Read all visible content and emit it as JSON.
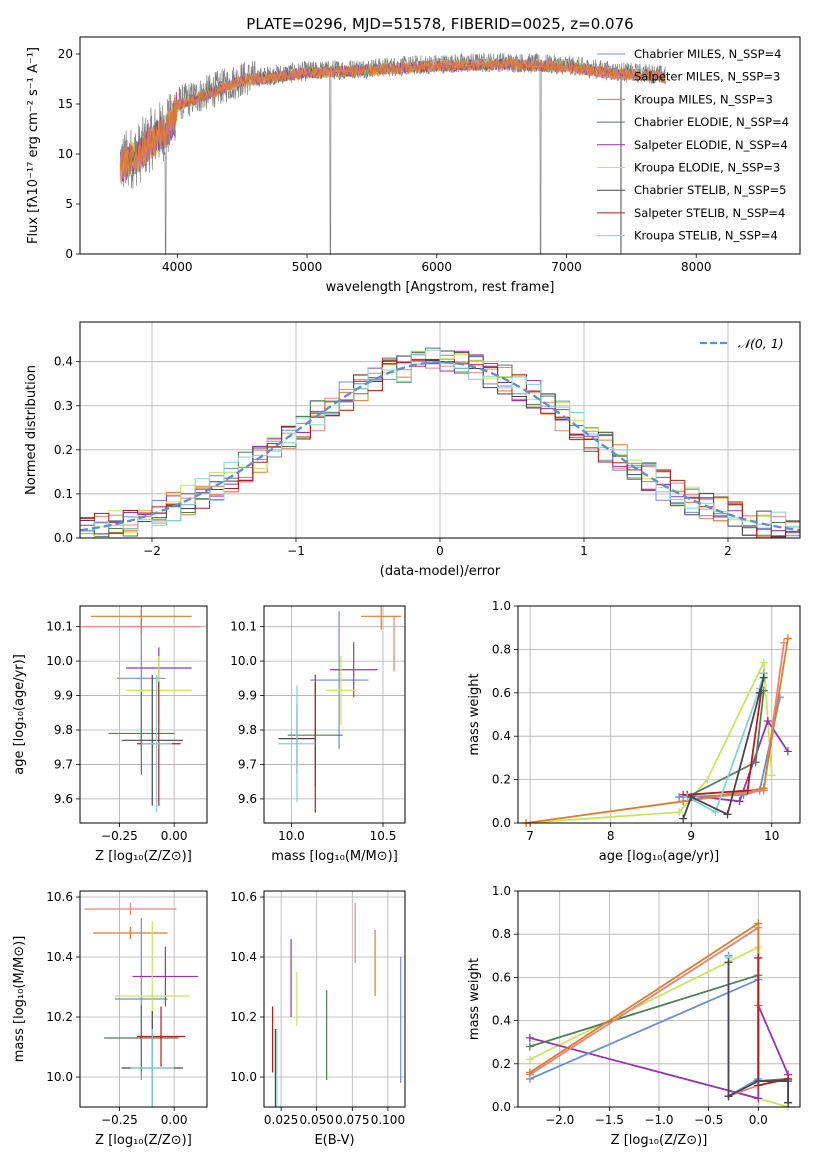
{
  "figure_title": "PLATE=0296, MJD=51578, FIBERID=0025, z=0.076",
  "colors": {
    "chabrier_miles": "#6b8fd6",
    "salpeter_miles": "#e8837a",
    "kroupa_miles": "#e07b2a",
    "chabrier_elodie": "#4f7f56",
    "salpeter_elodie": "#9b32b0",
    "kroupa_elodie": "#c8e65a",
    "chabrier_stelib": "#4a4452",
    "salpeter_stelib": "#b71c1c",
    "kroupa_stelib": "#7fd3d6",
    "data": "#808080",
    "normal": "#5b8fd6"
  },
  "chart_data": [
    {
      "id": "spectrum",
      "type": "line",
      "title": "PLATE=0296, MJD=51578, FIBERID=0025, z=0.076",
      "xlabel": "wavelength [Angstrom, rest frame]",
      "ylabel": "Flux [fλ10⁻¹⁷ erg cm⁻² s⁻¹ A⁻¹]",
      "xlim": [
        3250,
        8800
      ],
      "ylim": [
        0,
        21.7
      ],
      "xticks": [
        "4000",
        "5000",
        "6000",
        "7000",
        "8000"
      ],
      "yticks": [
        "0",
        "5",
        "10",
        "15",
        "20"
      ],
      "legend_position": "right",
      "legend": [
        {
          "label": "Chabrier MILES, N_SSP=4",
          "color_key": "chabrier_miles"
        },
        {
          "label": "Salpeter MILES, N_SSP=3",
          "color_key": "salpeter_miles"
        },
        {
          "label": "Kroupa MILES, N_SSP=3",
          "color_key": "kroupa_miles"
        },
        {
          "label": "Chabrier ELODIE, N_SSP=4",
          "color_key": "chabrier_elodie"
        },
        {
          "label": "Salpeter ELODIE, N_SSP=4",
          "color_key": "salpeter_elodie"
        },
        {
          "label": "Kroupa ELODIE, N_SSP=3",
          "color_key": "kroupa_elodie"
        },
        {
          "label": "Chabrier STELIB, N_SSP=5",
          "color_key": "chabrier_stelib"
        },
        {
          "label": "Salpeter STELIB, N_SSP=4",
          "color_key": "salpeter_stelib"
        },
        {
          "label": "Kroupa STELIB, N_SSP=4",
          "color_key": "kroupa_stelib"
        }
      ],
      "continuum": [
        [
          3560,
          9
        ],
        [
          3700,
          10
        ],
        [
          3800,
          11.5
        ],
        [
          3950,
          13
        ],
        [
          4000,
          15
        ],
        [
          4200,
          16
        ],
        [
          4500,
          17.5
        ],
        [
          5000,
          18.3
        ],
        [
          5500,
          18.6
        ],
        [
          6000,
          19
        ],
        [
          6500,
          19.2
        ],
        [
          7000,
          18.9
        ],
        [
          7400,
          18.2
        ],
        [
          7700,
          18
        ],
        [
          7760,
          17.8
        ]
      ],
      "drops": [
        [
          3910,
          0
        ],
        [
          5180,
          0
        ],
        [
          6800,
          0
        ],
        [
          7420,
          0
        ]
      ]
    },
    {
      "id": "residuals",
      "type": "bar",
      "xlabel": "(data-model)/error",
      "ylabel": "Normed distribution",
      "xlim": [
        -2.5,
        2.5
      ],
      "ylim": [
        0,
        0.49
      ],
      "xticks": [
        "−2",
        "−1",
        "0",
        "1",
        "2"
      ],
      "yticks": [
        "0.0",
        "0.1",
        "0.2",
        "0.3",
        "0.4"
      ],
      "legend": [
        {
          "label": "𝒩(0, 1)",
          "color_key": "normal"
        }
      ],
      "legend_position": "top-right",
      "bin_width": 0.1
    },
    {
      "id": "age_vs_Z",
      "type": "scatter",
      "xlabel": "Z [log₁₀(Z/Z⊙)]",
      "ylabel": "age  [log₁₀(age/yr)]",
      "xlim": [
        -0.43,
        0.15
      ],
      "ylim": [
        9.53,
        10.16
      ],
      "xticks": [
        {
          "v": -0.25,
          "t": "−0.25"
        },
        {
          "v": 0.0,
          "t": "0.00"
        }
      ],
      "yticks": [
        "9.6",
        "9.7",
        "9.8",
        "9.9",
        "10.0",
        "10.1"
      ],
      "points": [
        {
          "x": -0.15,
          "y": 9.95,
          "xerr": 0.11,
          "yerr": 0.2,
          "color_key": "chabrier_miles"
        },
        {
          "x": -0.15,
          "y": 10.1,
          "xerr": 0.27,
          "yerr": 0.03,
          "color_key": "salpeter_miles"
        },
        {
          "x": -0.15,
          "y": 10.13,
          "xerr": 0.23,
          "yerr": 0.05,
          "color_key": "kroupa_miles"
        },
        {
          "x": -0.15,
          "y": 9.79,
          "xerr": 0.15,
          "yerr": 0.12,
          "color_key": "chabrier_elodie"
        },
        {
          "x": -0.07,
          "y": 9.98,
          "xerr": 0.15,
          "yerr": 0.06,
          "color_key": "salpeter_elodie"
        },
        {
          "x": -0.07,
          "y": 9.915,
          "xerr": 0.15,
          "yerr": 0.1,
          "color_key": "kroupa_elodie"
        },
        {
          "x": -0.1,
          "y": 9.77,
          "xerr": 0.14,
          "yerr": 0.19,
          "color_key": "chabrier_stelib"
        },
        {
          "x": -0.07,
          "y": 9.76,
          "xerr": 0.1,
          "yerr": 0.18,
          "color_key": "salpeter_stelib"
        },
        {
          "x": -0.08,
          "y": 9.76,
          "xerr": 0.07,
          "yerr": 0.2,
          "color_key": "kroupa_stelib"
        }
      ]
    },
    {
      "id": "age_vs_mass",
      "type": "scatter",
      "xlabel": "mass [log₁₀(M/M⊙)]",
      "ylabel": "",
      "xlim": [
        9.85,
        10.62
      ],
      "ylim": [
        9.53,
        10.16
      ],
      "xticks": [
        {
          "v": 10.0,
          "t": "10.0"
        },
        {
          "v": 10.5,
          "t": "10.5"
        }
      ],
      "yticks": [
        "9.6",
        "9.7",
        "9.8",
        "9.9",
        "10.0",
        "10.1"
      ],
      "points": [
        {
          "x": 10.26,
          "y": 9.945,
          "xerr": 0.16,
          "yerr": 0.2,
          "color_key": "chabrier_miles"
        },
        {
          "x": 10.56,
          "y": 10.05,
          "xerr": 0.0,
          "yerr": 0.08,
          "color_key": "salpeter_miles"
        },
        {
          "x": 10.49,
          "y": 10.13,
          "xerr": 0.11,
          "yerr": 0.04,
          "color_key": "kroupa_miles"
        },
        {
          "x": 10.13,
          "y": 9.785,
          "xerr": 0.15,
          "yerr": 0.15,
          "color_key": "chabrier_elodie"
        },
        {
          "x": 10.34,
          "y": 9.975,
          "xerr": 0.13,
          "yerr": 0.08,
          "color_key": "salpeter_elodie"
        },
        {
          "x": 10.27,
          "y": 9.915,
          "xerr": 0.08,
          "yerr": 0.1,
          "color_key": "kroupa_elodie"
        },
        {
          "x": 10.03,
          "y": 9.775,
          "xerr": 0.1,
          "yerr": 0.1,
          "color_key": "chabrier_stelib"
        },
        {
          "x": 10.13,
          "y": 9.76,
          "xerr": 0.0,
          "yerr": 0.2,
          "color_key": "salpeter_stelib"
        },
        {
          "x": 10.03,
          "y": 9.76,
          "xerr": 0.1,
          "yerr": 0.17,
          "color_key": "kroupa_stelib"
        }
      ]
    },
    {
      "id": "weight_vs_age",
      "type": "line",
      "xlabel": "age  [log₁₀(age/yr)]",
      "ylabel": "mass weight",
      "xlim": [
        6.85,
        10.35
      ],
      "ylim": [
        0,
        1.0
      ],
      "xticks": [
        {
          "v": 7,
          "t": "7"
        },
        {
          "v": 8,
          "t": "8"
        },
        {
          "v": 9,
          "t": "9"
        },
        {
          "v": 10,
          "t": "10"
        }
      ],
      "yticks": [
        "0.0",
        "0.2",
        "0.4",
        "0.6",
        "0.8",
        "1.0"
      ],
      "series": [
        {
          "color_key": "kroupa_elodie",
          "x": [
            6.95,
            8.85,
            9.2,
            9.9,
            10.0
          ],
          "y": [
            0.0,
            0.05,
            0.2,
            0.74,
            0.22
          ]
        },
        {
          "color_key": "salpeter_elodie",
          "x": [
            8.9,
            9.6,
            9.95,
            10.2
          ],
          "y": [
            0.13,
            0.1,
            0.47,
            0.33
          ]
        },
        {
          "color_key": "chabrier_miles",
          "x": [
            8.85,
            9.65,
            9.85,
            10.1
          ],
          "y": [
            0.12,
            0.13,
            0.15,
            0.58
          ]
        },
        {
          "color_key": "chabrier_elodie",
          "x": [
            8.95,
            9.8,
            9.9
          ],
          "y": [
            0.12,
            0.28,
            0.61
          ]
        },
        {
          "color_key": "salpeter_miles",
          "x": [
            8.9,
            9.9,
            10.15
          ],
          "y": [
            0.1,
            0.15,
            0.83
          ]
        },
        {
          "color_key": "kroupa_miles",
          "x": [
            6.95,
            8.9,
            9.9,
            10.2
          ],
          "y": [
            0.0,
            0.1,
            0.16,
            0.85
          ]
        },
        {
          "color_key": "salpeter_stelib",
          "x": [
            8.95,
            9.7,
            9.9
          ],
          "y": [
            0.13,
            0.15,
            0.69
          ]
        },
        {
          "color_key": "kroupa_stelib",
          "x": [
            8.95,
            9.3,
            9.85,
            9.9
          ],
          "y": [
            0.12,
            0.05,
            0.62,
            0.69
          ]
        },
        {
          "color_key": "chabrier_stelib",
          "x": [
            8.9,
            9.0,
            9.45,
            9.85,
            9.9
          ],
          "y": [
            0.02,
            0.12,
            0.04,
            0.6,
            0.67
          ]
        }
      ]
    },
    {
      "id": "mass_vs_Z",
      "type": "scatter",
      "xlabel": "Z [log₁₀(Z/Z⊙)]",
      "ylabel": "mass [log₁₀(M/M⊙)]",
      "xlim": [
        -0.43,
        0.15
      ],
      "ylim": [
        9.9,
        10.62
      ],
      "xticks": [
        {
          "v": -0.25,
          "t": "−0.25"
        },
        {
          "v": 0.0,
          "t": "0.00"
        }
      ],
      "yticks": [
        "10.0",
        "10.2",
        "10.4",
        "10.6"
      ],
      "points": [
        {
          "x": -0.15,
          "y": 10.26,
          "xerr": 0.12,
          "yerr": 0.27,
          "color_key": "chabrier_miles"
        },
        {
          "x": -0.2,
          "y": 10.56,
          "xerr": 0.21,
          "yerr": 0.02,
          "color_key": "salpeter_miles"
        },
        {
          "x": -0.2,
          "y": 10.48,
          "xerr": 0.17,
          "yerr": 0.02,
          "color_key": "kroupa_miles"
        },
        {
          "x": -0.15,
          "y": 10.13,
          "xerr": 0.17,
          "yerr": 0.11,
          "color_key": "chabrier_elodie"
        },
        {
          "x": -0.04,
          "y": 10.335,
          "xerr": 0.15,
          "yerr": 0.1,
          "color_key": "salpeter_elodie"
        },
        {
          "x": -0.1,
          "y": 10.27,
          "xerr": 0.17,
          "yerr": 0.25,
          "color_key": "kroupa_elodie"
        },
        {
          "x": -0.1,
          "y": 10.03,
          "xerr": 0.14,
          "yerr": 0.19,
          "color_key": "chabrier_stelib"
        },
        {
          "x": -0.06,
          "y": 10.135,
          "xerr": 0.11,
          "yerr": 0.1,
          "color_key": "salpeter_stelib"
        },
        {
          "x": -0.1,
          "y": 10.03,
          "xerr": 0.1,
          "yerr": 0.13,
          "color_key": "kroupa_stelib"
        }
      ]
    },
    {
      "id": "mass_vs_ebv",
      "type": "scatter",
      "xlabel": "E(B-V)",
      "ylabel": "",
      "xlim": [
        0.013,
        0.112
      ],
      "ylim": [
        9.9,
        10.62
      ],
      "xticks": [
        {
          "v": 0.025,
          "t": "0.025"
        },
        {
          "v": 0.05,
          "t": "0.050"
        },
        {
          "v": 0.075,
          "t": "0.075"
        },
        {
          "v": 0.1,
          "t": "0.100"
        }
      ],
      "yticks": [
        "10.0",
        "10.2",
        "10.4",
        "10.6"
      ],
      "points": [
        {
          "x": 0.109,
          "y": 10.19,
          "xerr": 0,
          "yerr": 0.21,
          "color_key": "chabrier_miles"
        },
        {
          "x": 0.077,
          "y": 10.48,
          "xerr": 0,
          "yerr": 0.1,
          "color_key": "salpeter_miles"
        },
        {
          "x": 0.091,
          "y": 10.38,
          "xerr": 0,
          "yerr": 0.11,
          "color_key": "kroupa_miles"
        },
        {
          "x": 0.057,
          "y": 10.14,
          "xerr": 0,
          "yerr": 0.15,
          "color_key": "chabrier_elodie"
        },
        {
          "x": 0.032,
          "y": 10.33,
          "xerr": 0,
          "yerr": 0.13,
          "color_key": "salpeter_elodie"
        },
        {
          "x": 0.036,
          "y": 10.26,
          "xerr": 0,
          "yerr": 0.09,
          "color_key": "kroupa_elodie"
        },
        {
          "x": 0.021,
          "y": 10.03,
          "xerr": 0,
          "yerr": 0.13,
          "color_key": "chabrier_stelib"
        },
        {
          "x": 0.019,
          "y": 10.125,
          "xerr": 0,
          "yerr": 0.11,
          "color_key": "salpeter_stelib"
        },
        {
          "x": 0.022,
          "y": 10.03,
          "xerr": 0,
          "yerr": 0.13,
          "color_key": "kroupa_stelib"
        }
      ]
    },
    {
      "id": "weight_vs_Z",
      "type": "line",
      "xlabel": "Z [log₁₀(Z/Z⊙)]",
      "ylabel": "mass weight",
      "xlim": [
        -2.42,
        0.42
      ],
      "ylim": [
        0,
        1.0
      ],
      "xticks": [
        {
          "v": -2.0,
          "t": "−2.0"
        },
        {
          "v": -1.5,
          "t": "−1.5"
        },
        {
          "v": -1.0,
          "t": "−1.0"
        },
        {
          "v": -0.5,
          "t": "−0.5"
        },
        {
          "v": 0.0,
          "t": "0.0"
        }
      ],
      "yticks": [
        "0.0",
        "0.2",
        "0.4",
        "0.6",
        "0.8",
        "1.0"
      ],
      "series": [
        {
          "color_key": "kroupa_elodie",
          "x": [
            -2.3,
            0.0,
            0.0,
            0.3
          ],
          "y": [
            0.22,
            0.74,
            0.04,
            0.0
          ]
        },
        {
          "color_key": "salpeter_elodie",
          "x": [
            -2.3,
            0.0,
            0.0,
            0.3
          ],
          "y": [
            0.32,
            0.04,
            0.47,
            0.15
          ]
        },
        {
          "color_key": "chabrier_miles",
          "x": [
            -2.3,
            0.0,
            0.0,
            -0.3,
            -0.3
          ],
          "y": [
            0.13,
            0.59,
            0.13,
            0.05,
            0.7
          ]
        },
        {
          "color_key": "chabrier_elodie",
          "x": [
            -2.3,
            0.0,
            0.0,
            0.3,
            0.3
          ],
          "y": [
            0.28,
            0.61,
            0.12,
            0.13,
            0.02
          ]
        },
        {
          "color_key": "salpeter_miles",
          "x": [
            -2.3,
            0.0,
            0.0,
            -0.3
          ],
          "y": [
            0.15,
            0.83,
            0.1,
            0.05
          ]
        },
        {
          "color_key": "kroupa_miles",
          "x": [
            -2.3,
            0.0,
            0.0
          ],
          "y": [
            0.16,
            0.85,
            0.47
          ]
        },
        {
          "color_key": "salpeter_stelib",
          "x": [
            0.0,
            0.0,
            0.3
          ],
          "y": [
            0.69,
            0.1,
            0.13
          ]
        },
        {
          "color_key": "kroupa_stelib",
          "x": [
            -0.3,
            -0.3,
            0.0
          ],
          "y": [
            0.69,
            0.05,
            0.12
          ]
        },
        {
          "color_key": "chabrier_stelib",
          "x": [
            -0.3,
            -0.3,
            0.0,
            0.3,
            0.3
          ],
          "y": [
            0.67,
            0.05,
            0.12,
            0.12,
            0.02
          ]
        }
      ]
    }
  ]
}
